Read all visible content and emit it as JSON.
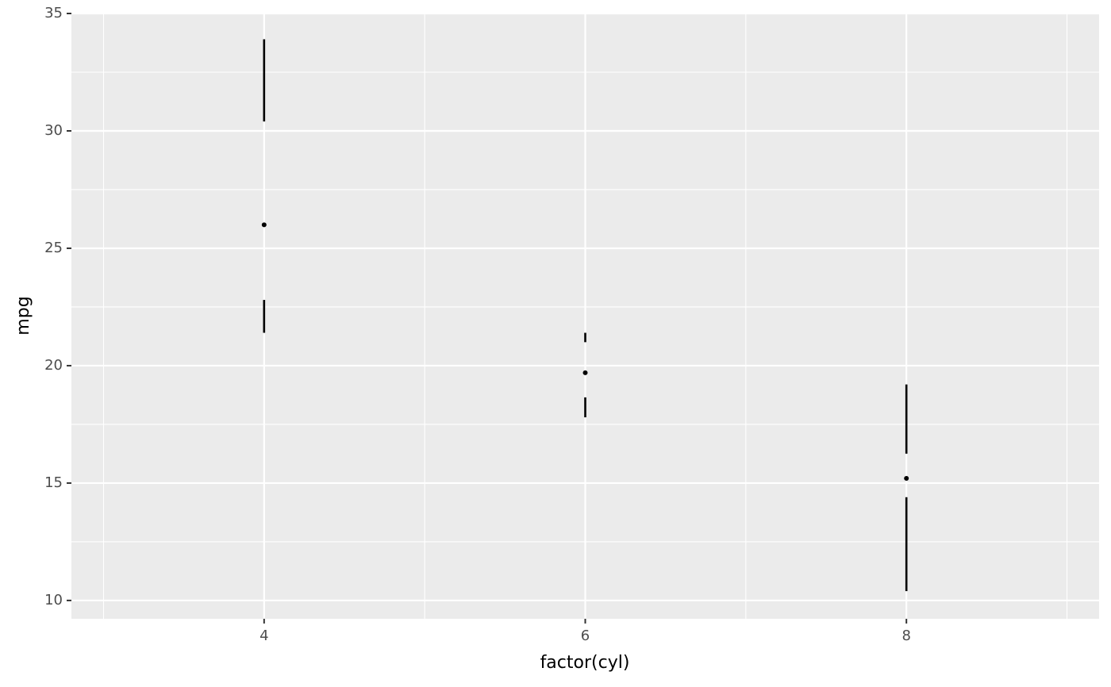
{
  "chart_data": {
    "type": "tufte-boxplot",
    "x_label": "factor(cyl)",
    "y_label": "mpg",
    "x": [
      4,
      6,
      8
    ],
    "min": [
      21.4,
      17.8,
      10.4
    ],
    "q1": [
      22.8,
      18.65,
      14.4
    ],
    "median": [
      26,
      19.7,
      15.2
    ],
    "q3": [
      30.4,
      21,
      16.25
    ],
    "max": [
      33.9,
      21.4,
      19.2
    ],
    "color": "#000000",
    "xlim": [
      2.8,
      9.2
    ],
    "xticks": [
      4,
      6,
      8
    ],
    "minor_xticks": [
      3,
      5,
      7,
      9
    ],
    "ylim": [
      9.22,
      35
    ],
    "yticks": [
      10,
      15,
      20,
      25,
      30,
      35
    ],
    "minor_yticks": [
      12.5,
      17.5,
      22.5,
      27.5,
      32.5
    ],
    "grid": true
  }
}
